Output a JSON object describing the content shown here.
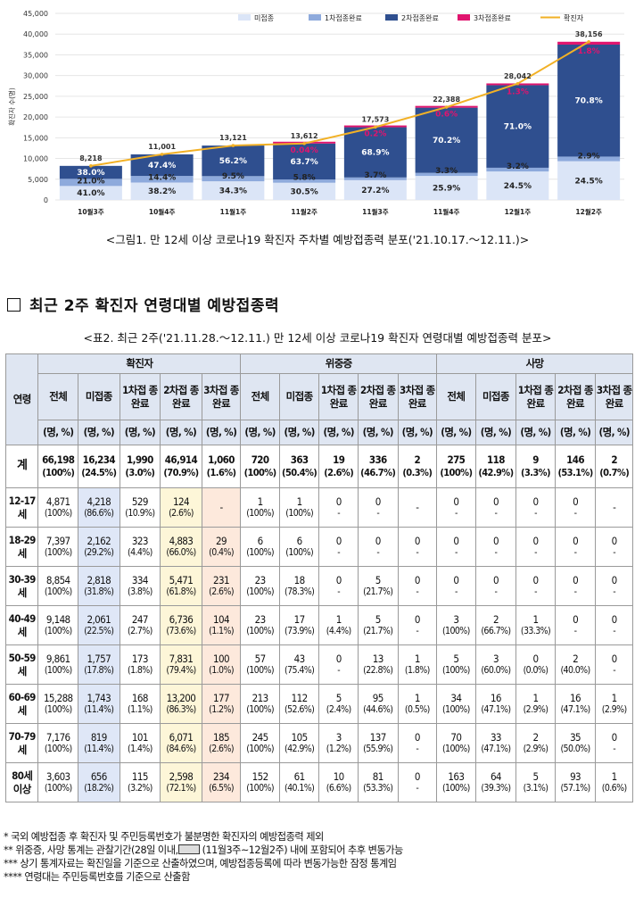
{
  "chart_data": {
    "type": "bar",
    "title": "",
    "ylabel": "확진자 수(명)",
    "ylim": [
      0,
      45000
    ],
    "yticks": [
      "0",
      "5,000",
      "10,000",
      "15,000",
      "20,000",
      "25,000",
      "30,000",
      "35,000",
      "40,000",
      "45,000"
    ],
    "categories": [
      "10월3주",
      "10월4주",
      "11월1주",
      "11월2주",
      "11월3주",
      "11월4주",
      "12월1주",
      "12월2주"
    ],
    "totals": [
      8218,
      11001,
      13121,
      13612,
      17573,
      22388,
      28042,
      38156
    ],
    "total_labels": [
      "8,218",
      "11,001",
      "13,121",
      "13,612",
      "17,573",
      "22,388",
      "28,042",
      "38,156"
    ],
    "series": [
      {
        "name": "미접종",
        "color": "#dbe5f7",
        "pct": [
          41.0,
          38.2,
          34.3,
          30.5,
          27.2,
          25.9,
          24.5,
          24.5
        ],
        "labels": [
          "41.0%",
          "38.2%",
          "34.3%",
          "30.5%",
          "27.2%",
          "25.9%",
          "24.5%",
          "24.5%"
        ]
      },
      {
        "name": "1차접종완료",
        "color": "#8eaadc",
        "pct": [
          21.0,
          14.4,
          9.5,
          5.8,
          3.7,
          3.3,
          3.2,
          2.9
        ],
        "labels": [
          "21.0%",
          "14.4%",
          "9.5%",
          "5.8%",
          "3.7%",
          "3.3%",
          "3.2%",
          "2.9%"
        ]
      },
      {
        "name": "2차접종완료",
        "color": "#2f4f8f",
        "pct": [
          38.0,
          47.4,
          56.2,
          63.7,
          68.9,
          70.2,
          71.0,
          70.8
        ],
        "labels": [
          "38.0%",
          "47.4%",
          "56.2%",
          "63.7%",
          "68.9%",
          "70.2%",
          "71.0%",
          "70.8%"
        ]
      },
      {
        "name": "3차접종완료",
        "color": "#e0146e",
        "pct": [
          0,
          0,
          0,
          0.04,
          0.2,
          0.6,
          1.3,
          1.8
        ],
        "labels": [
          "",
          "",
          "",
          "0.04%",
          "0.2%",
          "0.6%",
          "1.3%",
          "1.8%"
        ]
      }
    ],
    "line_name": "확진자",
    "line_color": "#f2b126",
    "legend_position": "top-right"
  },
  "captions": {
    "figure1": "<그림1. 만 12세 이상 코로나19 확진자 주차별 예방접종력 분포('21.10.17.～12.11.)>",
    "section": "최근 2주 확진자 연령대별 예방접종력",
    "table2": "<표2. 최근 2주('21.11.28.～12.11.) 만 12세 이상 코로나19 확진자 연령대별 예방접종력 분포>"
  },
  "table": {
    "age_header": "연령",
    "groups": [
      "확진자",
      "위중증",
      "사망"
    ],
    "subheaders": [
      "전체",
      "미접종",
      "1차접 종완료",
      "2차접 종완료",
      "3차접 종 완료",
      "전체",
      "미접종",
      "1차접 종완료",
      "2차접 종완료",
      "3차접 종 완료",
      "전체",
      "미접종",
      "1차접 종완료",
      "2차접 종 완료",
      "3차접 종 완료"
    ],
    "unit": "(명, %)",
    "rows": [
      {
        "age": "계",
        "total": true,
        "cells": [
          [
            "66,198",
            "(100%)"
          ],
          [
            "16,234",
            "(24.5%)"
          ],
          [
            "1,990",
            "(3.0%)"
          ],
          [
            "46,914",
            "(70.9%)"
          ],
          [
            "1,060",
            "(1.6%)"
          ],
          [
            "720",
            "(100%)"
          ],
          [
            "363",
            "(50.4%)"
          ],
          [
            "19",
            "(2.6%)"
          ],
          [
            "336",
            "(46.7%)"
          ],
          [
            "2",
            "(0.3%)"
          ],
          [
            "275",
            "(100%)"
          ],
          [
            "118",
            "(42.9%)"
          ],
          [
            "9",
            "(3.3%)"
          ],
          [
            "146",
            "(53.1%)"
          ],
          [
            "2",
            "(0.7%)"
          ]
        ]
      },
      {
        "age": "12-17 세",
        "cells": [
          [
            "4,871",
            "(100%)"
          ],
          [
            "4,218",
            "(86.6%)"
          ],
          [
            "529",
            "(10.9%)"
          ],
          [
            "124",
            "(2.6%)"
          ],
          [
            "-",
            ""
          ],
          [
            "1",
            "(100%)"
          ],
          [
            "1",
            "(100%)"
          ],
          [
            "0",
            "-"
          ],
          [
            "0",
            "-"
          ],
          [
            "-",
            ""
          ],
          [
            "0",
            "-"
          ],
          [
            "0",
            "-"
          ],
          [
            "0",
            "-"
          ],
          [
            "0",
            "-"
          ],
          [
            "-",
            ""
          ]
        ]
      },
      {
        "age": "18-29 세",
        "cells": [
          [
            "7,397",
            "(100%)"
          ],
          [
            "2,162",
            "(29.2%)"
          ],
          [
            "323",
            "(4.4%)"
          ],
          [
            "4,883",
            "(66.0%)"
          ],
          [
            "29",
            "(0.4%)"
          ],
          [
            "6",
            "(100%)"
          ],
          [
            "6",
            "(100%)"
          ],
          [
            "0",
            "-"
          ],
          [
            "0",
            "-"
          ],
          [
            "0",
            "-"
          ],
          [
            "0",
            "-"
          ],
          [
            "0",
            "-"
          ],
          [
            "0",
            "-"
          ],
          [
            "0",
            "-"
          ],
          [
            "0",
            "-"
          ]
        ]
      },
      {
        "age": "30-39 세",
        "cells": [
          [
            "8,854",
            "(100%)"
          ],
          [
            "2,818",
            "(31.8%)"
          ],
          [
            "334",
            "(3.8%)"
          ],
          [
            "5,471",
            "(61.8%)"
          ],
          [
            "231",
            "(2.6%)"
          ],
          [
            "23",
            "(100%)"
          ],
          [
            "18",
            "(78.3%)"
          ],
          [
            "0",
            "-"
          ],
          [
            "5",
            "(21.7%)"
          ],
          [
            "0",
            "-"
          ],
          [
            "0",
            "-"
          ],
          [
            "0",
            "-"
          ],
          [
            "0",
            "-"
          ],
          [
            "0",
            "-"
          ],
          [
            "0",
            "-"
          ]
        ]
      },
      {
        "age": "40-49 세",
        "cells": [
          [
            "9,148",
            "(100%)"
          ],
          [
            "2,061",
            "(22.5%)"
          ],
          [
            "247",
            "(2.7%)"
          ],
          [
            "6,736",
            "(73.6%)"
          ],
          [
            "104",
            "(1.1%)"
          ],
          [
            "23",
            "(100%)"
          ],
          [
            "17",
            "(73.9%)"
          ],
          [
            "1",
            "(4.4%)"
          ],
          [
            "5",
            "(21.7%)"
          ],
          [
            "0",
            "-"
          ],
          [
            "3",
            "(100%)"
          ],
          [
            "2",
            "(66.7%)"
          ],
          [
            "1",
            "(33.3%)"
          ],
          [
            "0",
            "-"
          ],
          [
            "0",
            "-"
          ]
        ]
      },
      {
        "age": "50-59 세",
        "cells": [
          [
            "9,861",
            "(100%)"
          ],
          [
            "1,757",
            "(17.8%)"
          ],
          [
            "173",
            "(1.8%)"
          ],
          [
            "7,831",
            "(79.4%)"
          ],
          [
            "100",
            "(1.0%)"
          ],
          [
            "57",
            "(100%)"
          ],
          [
            "43",
            "(75.4%)"
          ],
          [
            "0",
            "-"
          ],
          [
            "13",
            "(22.8%)"
          ],
          [
            "1",
            "(1.8%)"
          ],
          [
            "5",
            "(100%)"
          ],
          [
            "3",
            "(60.0%)"
          ],
          [
            "0",
            "(0.0%)"
          ],
          [
            "2",
            "(40.0%)"
          ],
          [
            "0",
            "-"
          ]
        ]
      },
      {
        "age": "60-69 세",
        "cells": [
          [
            "15,288",
            "(100%)"
          ],
          [
            "1,743",
            "(11.4%)"
          ],
          [
            "168",
            "(1.1%)"
          ],
          [
            "13,200",
            "(86.3%)"
          ],
          [
            "177",
            "(1.2%)"
          ],
          [
            "213",
            "(100%)"
          ],
          [
            "112",
            "(52.6%)"
          ],
          [
            "5",
            "(2.4%)"
          ],
          [
            "95",
            "(44.6%)"
          ],
          [
            "1",
            "(0.5%)"
          ],
          [
            "34",
            "(100%)"
          ],
          [
            "16",
            "(47.1%)"
          ],
          [
            "1",
            "(2.9%)"
          ],
          [
            "16",
            "(47.1%)"
          ],
          [
            "1",
            "(2.9%)"
          ]
        ]
      },
      {
        "age": "70-79 세",
        "cells": [
          [
            "7,176",
            "(100%)"
          ],
          [
            "819",
            "(11.4%)"
          ],
          [
            "101",
            "(1.4%)"
          ],
          [
            "6,071",
            "(84.6%)"
          ],
          [
            "185",
            "(2.6%)"
          ],
          [
            "245",
            "(100%)"
          ],
          [
            "105",
            "(42.9%)"
          ],
          [
            "3",
            "(1.2%)"
          ],
          [
            "137",
            "(55.9%)"
          ],
          [
            "0",
            "-"
          ],
          [
            "70",
            "(100%)"
          ],
          [
            "33",
            "(47.1%)"
          ],
          [
            "2",
            "(2.9%)"
          ],
          [
            "35",
            "(50.0%)"
          ],
          [
            "0",
            "-"
          ]
        ]
      },
      {
        "age": "80세 이상",
        "cells": [
          [
            "3,603",
            "(100%)"
          ],
          [
            "656",
            "(18.2%)"
          ],
          [
            "115",
            "(3.2%)"
          ],
          [
            "2,598",
            "(72.1%)"
          ],
          [
            "234",
            "(6.5%)"
          ],
          [
            "152",
            "(100%)"
          ],
          [
            "61",
            "(40.1%)"
          ],
          [
            "10",
            "(6.6%)"
          ],
          [
            "81",
            "(53.3%)"
          ],
          [
            "0",
            "-"
          ],
          [
            "163",
            "(100%)"
          ],
          [
            "64",
            "(39.3%)"
          ],
          [
            "5",
            "(3.1%)"
          ],
          [
            "93",
            "(57.1%)"
          ],
          [
            "1",
            "(0.6%)"
          ]
        ]
      }
    ]
  },
  "footnotes": {
    "f1": "* 국외 예방접종 후 확진자 및  주민등록번호가 불분명한 확진자의 예방접종력 제외",
    "f2a": "**   위중증, 사망 통계는 관찰기간(28일 이내,",
    "f2b": " (11월3주~12월2주) 내에 포함되어 추후 변동가능",
    "f3": "*** 상기 통계자료는 확진일을 기준으로 산출하였으며, 예방접종등록에 따라 변동가능한 잠정 통계임",
    "f4": "**** 연령대는 주민등록번호를 기준으로 산출함"
  }
}
